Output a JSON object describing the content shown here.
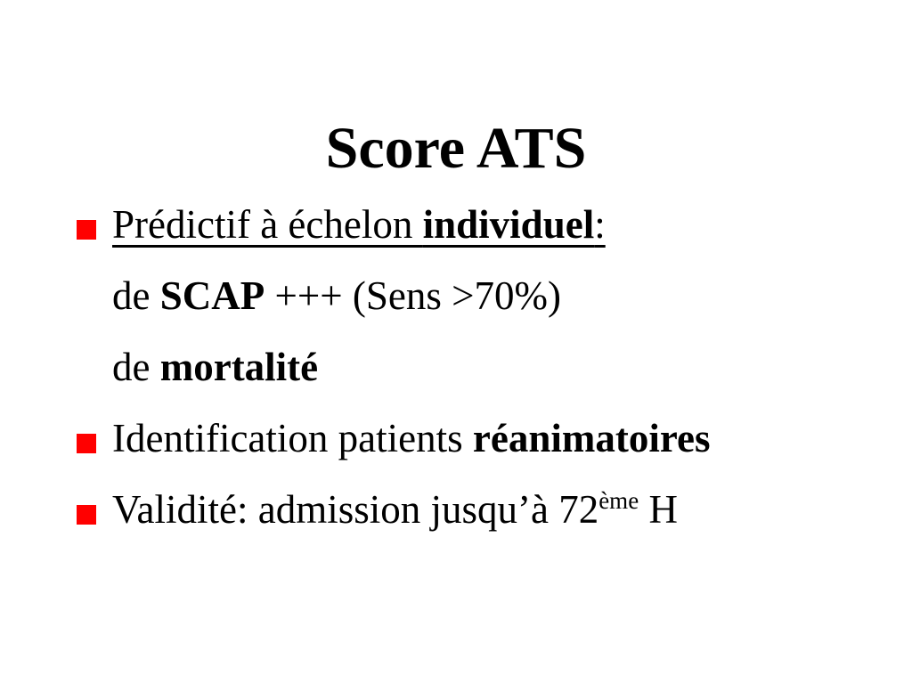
{
  "slide": {
    "title": "Score ATS",
    "colors": {
      "background": "#ffffff",
      "text": "#000000",
      "bullet_square": "#ff0000"
    },
    "bullets": [
      {
        "marker": true,
        "underline": true,
        "segments": [
          {
            "text": "Prédictif à échelon ",
            "bold": false
          },
          {
            "text": "individuel",
            "bold": true
          },
          {
            "text": ":",
            "bold": false
          }
        ]
      },
      {
        "marker": false,
        "underline": false,
        "segments": [
          {
            "text": "de ",
            "bold": false
          },
          {
            "text": "SCAP",
            "bold": true
          },
          {
            "text": " +++ (Sens >70%)",
            "bold": false
          }
        ]
      },
      {
        "marker": false,
        "underline": false,
        "segments": [
          {
            "text": "de ",
            "bold": false
          },
          {
            "text": "mortalité",
            "bold": true
          }
        ]
      },
      {
        "marker": true,
        "underline": false,
        "segments": [
          {
            "text": "Identification patients ",
            "bold": false
          },
          {
            "text": "réanimatoires",
            "bold": true
          }
        ]
      },
      {
        "marker": true,
        "underline": false,
        "segments": [
          {
            "text": "Validité: admission jusqu’à 72",
            "bold": false
          },
          {
            "text": "ème",
            "bold": false,
            "sup": true
          },
          {
            "text": " H",
            "bold": false
          }
        ]
      }
    ]
  }
}
